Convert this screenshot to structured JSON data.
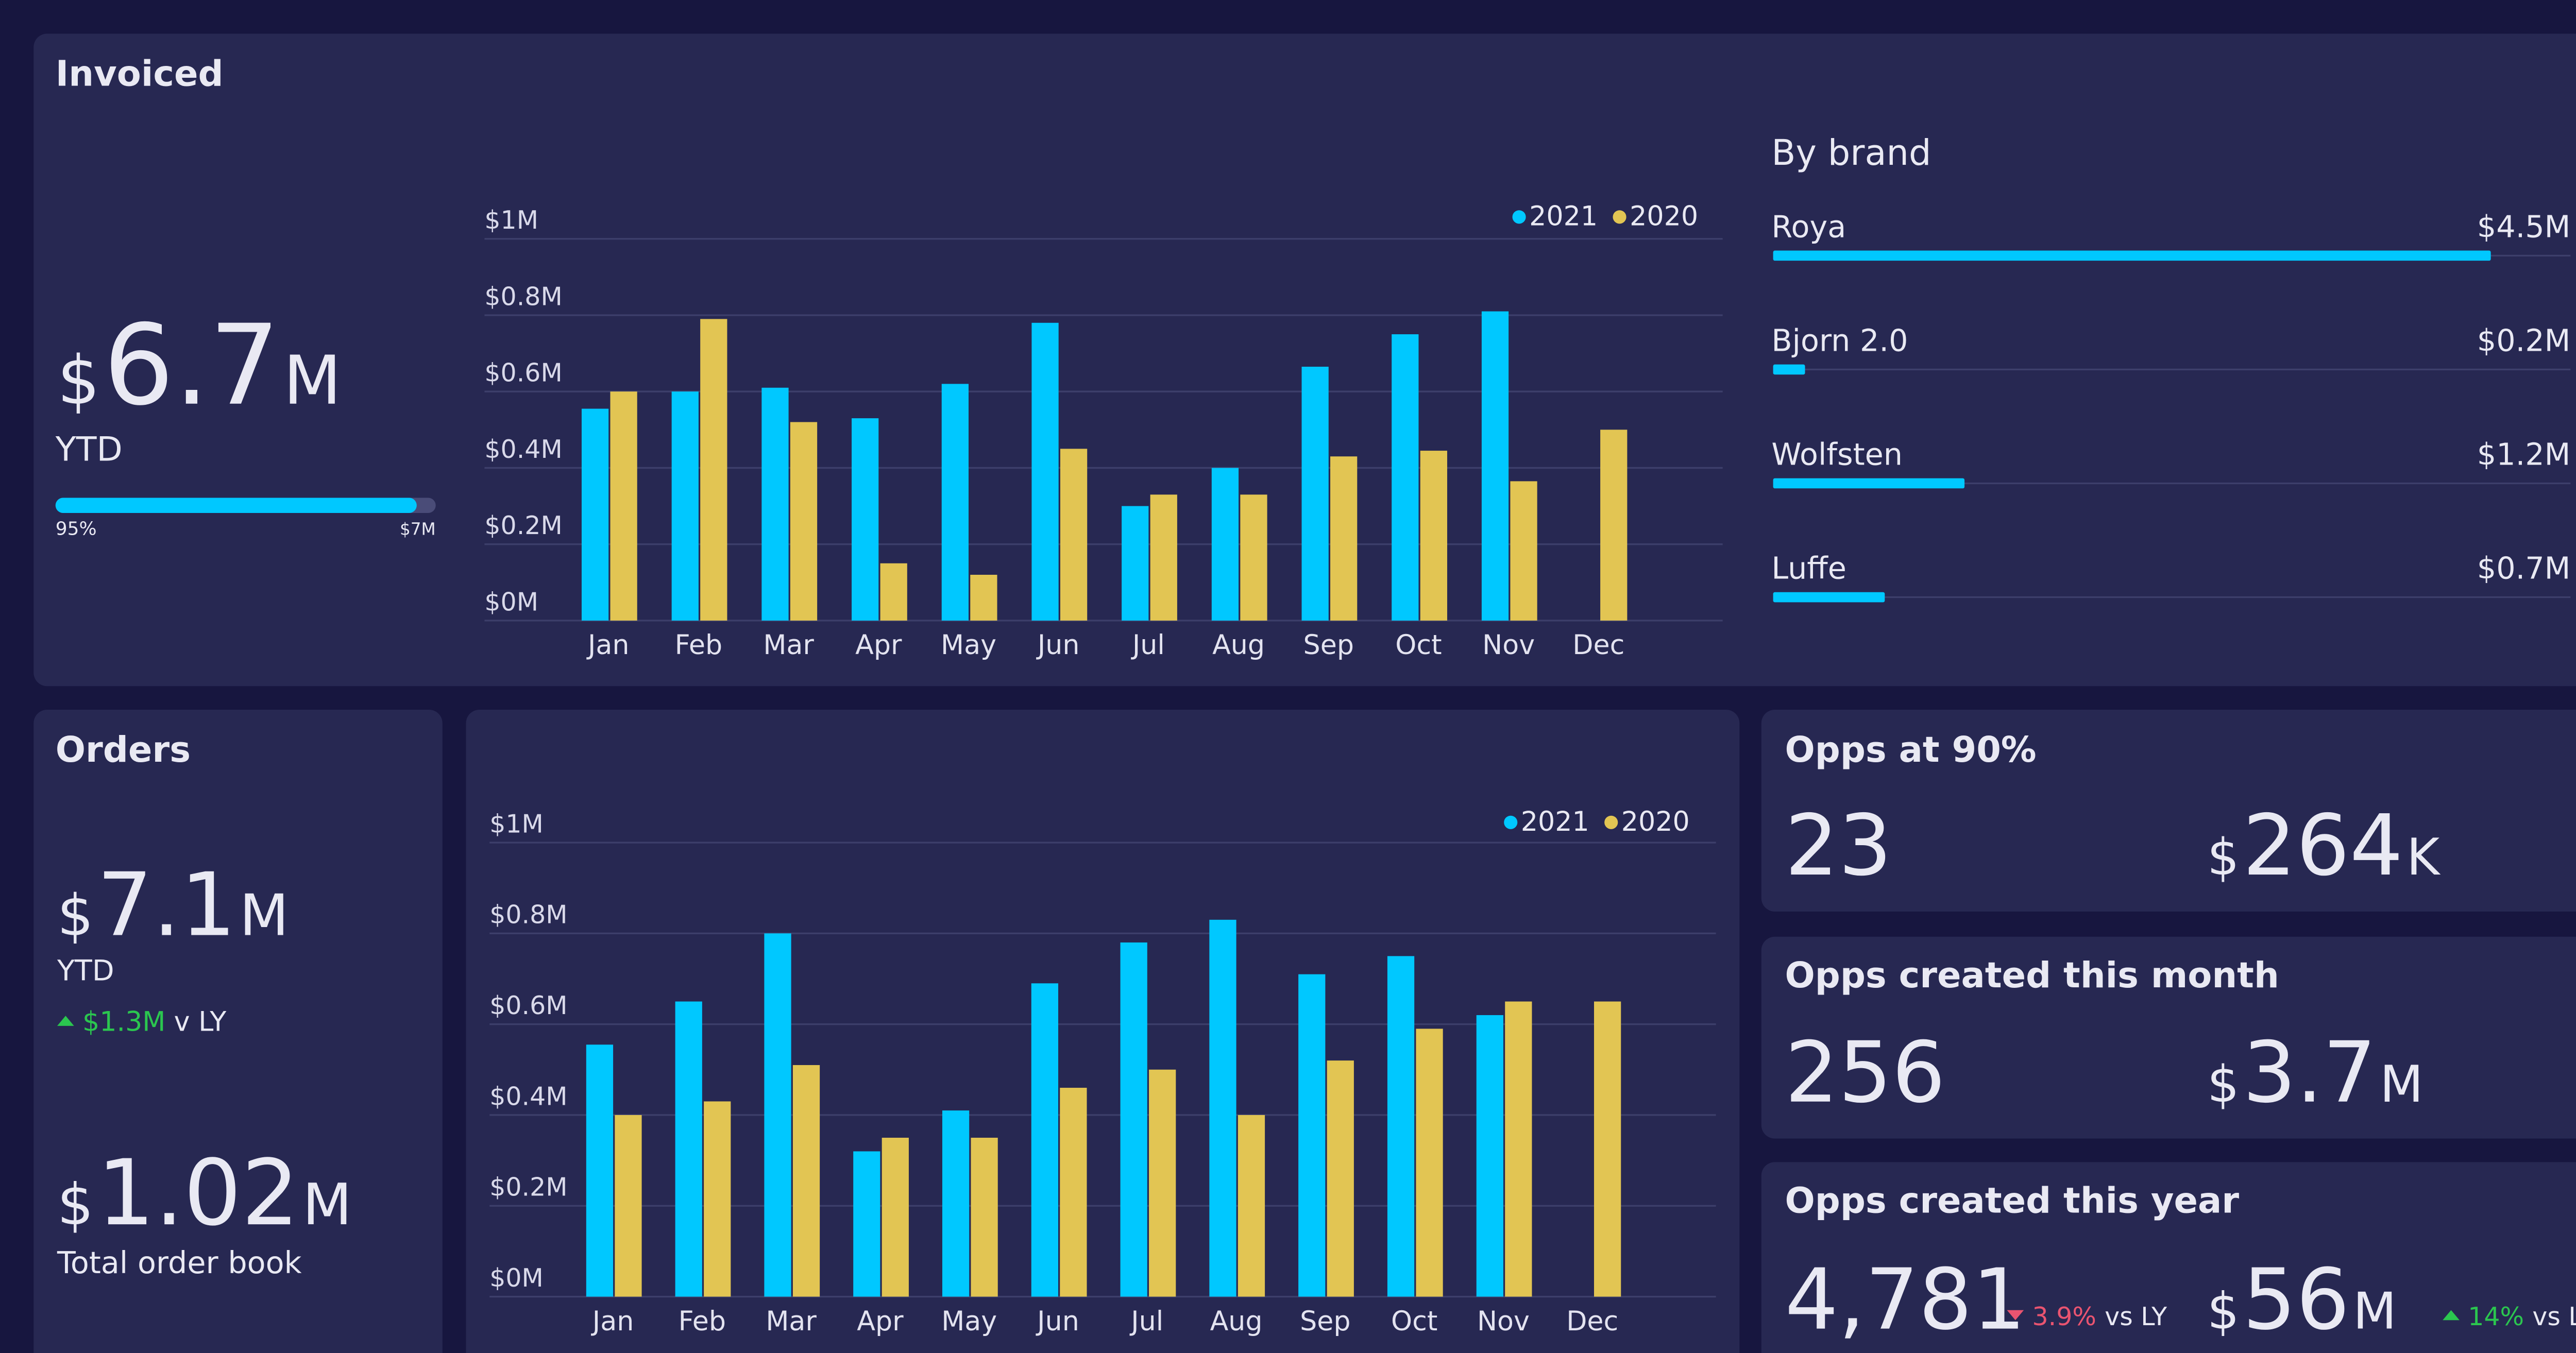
{
  "invoiced": {
    "title": "Invoiced",
    "total": {
      "prefix": "$",
      "number": "6.7",
      "suffix": "M"
    },
    "period": "YTD",
    "progress": {
      "value": 95,
      "label": "95%",
      "target": "$7M"
    }
  },
  "orders": {
    "title": "Orders",
    "total": {
      "prefix": "$",
      "number": "7.1",
      "suffix": "M"
    },
    "period": "YTD",
    "change": {
      "direction": "up",
      "label": "$1.3M",
      "text": "v LY"
    },
    "order_book": {
      "prefix": "$",
      "number": "1.02",
      "suffix": "M"
    },
    "order_book_label": "Total order book"
  },
  "opps": [
    {
      "title": "Opps at 90%",
      "count": "23",
      "amount": {
        "prefix": "$",
        "number": "264",
        "suffix": "K"
      }
    },
    {
      "title": "Opps created this month",
      "count": "256",
      "amount": {
        "prefix": "$",
        "number": "3.7",
        "suffix": "M"
      }
    },
    {
      "title": "Opps created this year",
      "count": "4,781",
      "count_change": {
        "direction": "down",
        "label": "3.9%",
        "text": "vs LY"
      },
      "amount": {
        "prefix": "$",
        "number": "56",
        "suffix": "M"
      },
      "amount_change": {
        "direction": "up",
        "label": "14%",
        "text": "vs LY"
      }
    }
  ],
  "chart_data": [
    {
      "type": "bar",
      "categories": [
        "Jan",
        "Feb",
        "Mar",
        "Apr",
        "May",
        "Jun",
        "Jul",
        "Aug",
        "Sep",
        "Oct",
        "Nov",
        "Dec"
      ],
      "series": [
        {
          "name": "2021",
          "color": "#00c8ff",
          "values": [
            0.555,
            0.6,
            0.61,
            0.53,
            0.62,
            0.78,
            0.3,
            0.4,
            0.665,
            0.75,
            0.81,
            null
          ]
        },
        {
          "name": "2020",
          "color": "#e2c553",
          "values": [
            0.6,
            0.79,
            0.52,
            0.15,
            0.12,
            0.45,
            0.33,
            0.33,
            0.43,
            0.445,
            0.365,
            0.5
          ]
        }
      ],
      "ylim": [
        0,
        1
      ],
      "yticks": [
        {
          "value": 0,
          "label": "$0M"
        },
        {
          "value": 0.2,
          "label": "$0.2M"
        },
        {
          "value": 0.4,
          "label": "$0.4M"
        },
        {
          "value": 0.6,
          "label": "$0.6M"
        },
        {
          "value": 0.8,
          "label": "$0.8M"
        },
        {
          "value": 1,
          "label": "$1M"
        }
      ],
      "grid": true,
      "legend": "top-right"
    },
    {
      "type": "bar",
      "categories": [
        "Jan",
        "Feb",
        "Mar",
        "Apr",
        "May",
        "Jun",
        "Jul",
        "Aug",
        "Sep",
        "Oct",
        "Nov",
        "Dec"
      ],
      "series": [
        {
          "name": "2021",
          "color": "#00c8ff",
          "values": [
            0.555,
            0.65,
            0.8,
            0.32,
            0.41,
            0.69,
            0.78,
            0.83,
            0.71,
            0.75,
            0.62,
            null
          ]
        },
        {
          "name": "2020",
          "color": "#e2c553",
          "values": [
            0.4,
            0.43,
            0.51,
            0.35,
            0.35,
            0.46,
            0.5,
            0.4,
            0.52,
            0.59,
            0.65,
            0.65
          ]
        }
      ],
      "ylim": [
        0,
        1
      ],
      "yticks": [
        {
          "value": 0,
          "label": "$0M"
        },
        {
          "value": 0.2,
          "label": "$0.2M"
        },
        {
          "value": 0.4,
          "label": "$0.4M"
        },
        {
          "value": 0.6,
          "label": "$0.6M"
        },
        {
          "value": 0.8,
          "label": "$0.8M"
        },
        {
          "value": 1,
          "label": "$1M"
        }
      ],
      "grid": true,
      "legend": "top-right"
    },
    {
      "type": "hbar",
      "title": "By brand",
      "categories": [
        "Roya",
        "Bjorn 2.0",
        "Wolfsten",
        "Luffe"
      ],
      "values": [
        4.5,
        0.2,
        1.2,
        0.7
      ],
      "value_labels": [
        "$4.5M",
        "$0.2M",
        "$1.2M",
        "$0.7M"
      ],
      "xlim": [
        0,
        5
      ],
      "color": "#00c8ff"
    }
  ]
}
